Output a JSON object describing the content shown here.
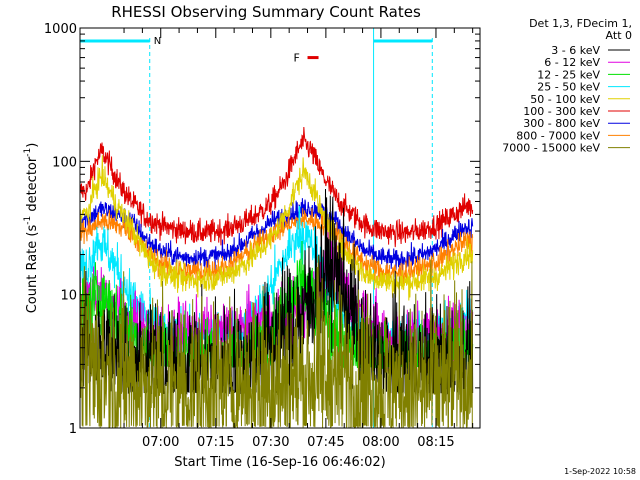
{
  "chart_data": {
    "type": "line",
    "title": "RHESSI Observing Summary Count Rates",
    "xlabel": "Start Time (16-Sep-16 06:46:02)",
    "ylabel": "Count Rate (s",
    "ylabel_sup1": "-1",
    "ylabel_mid": " detector",
    "ylabel_sup2": "-1",
    "ylabel_end": ")",
    "yscale": "log",
    "ylim": [
      1,
      1000
    ],
    "xlim_minutes": [
      -8,
      101
    ],
    "x_tick_labels": [
      {
        "minute": 14,
        "label": "07:00"
      },
      {
        "minute": 29,
        "label": "07:15"
      },
      {
        "minute": 44,
        "label": "07:30"
      },
      {
        "minute": 59,
        "label": "07:45"
      },
      {
        "minute": 74,
        "label": "08:00"
      },
      {
        "minute": 89,
        "label": "08:15"
      }
    ],
    "y_tick_labels": [
      {
        "value": 1,
        "label": "1"
      },
      {
        "value": 10,
        "label": "10"
      },
      {
        "value": 100,
        "label": "100"
      },
      {
        "value": 1000,
        "label": "1000"
      }
    ],
    "legend": {
      "header1": "Det 1,3, FDecim 1,",
      "header2": "Att 0",
      "entries": [
        {
          "label": "3 - 6 keV",
          "color": "#000000"
        },
        {
          "label": "6 - 12 keV",
          "color": "#e000e0"
        },
        {
          "label": "12 - 25 keV",
          "color": "#00e000"
        },
        {
          "label": "25 - 50 keV",
          "color": "#00e8ff"
        },
        {
          "label": "50 - 100 keV",
          "color": "#e0d000"
        },
        {
          "label": "100 - 300 keV",
          "color": "#e00000"
        },
        {
          "label": "300 - 800 keV",
          "color": "#0000e0"
        },
        {
          "label": "800 - 7000 keV",
          "color": "#ff8000"
        },
        {
          "label": "7000 - 15000 keV",
          "color": "#808000"
        }
      ]
    },
    "night_intervals": [
      {
        "start": -8,
        "end": 11,
        "label": "N"
      },
      {
        "start": 72,
        "end": 88,
        "label": ""
      }
    ],
    "flare_marker": {
      "label": "F",
      "start": 54,
      "end": 57,
      "y": 600
    },
    "series": [
      {
        "name": "100 - 300 keV",
        "color": "#e00000",
        "noise": 0.045,
        "points": [
          [
            -6,
            60
          ],
          [
            -4,
            95
          ],
          [
            -2,
            120
          ],
          [
            0,
            95
          ],
          [
            3,
            65
          ],
          [
            6,
            50
          ],
          [
            10,
            38
          ],
          [
            14,
            33
          ],
          [
            20,
            30
          ],
          [
            26,
            29
          ],
          [
            32,
            31
          ],
          [
            38,
            36
          ],
          [
            44,
            48
          ],
          [
            48,
            72
          ],
          [
            50,
            100
          ],
          [
            52,
            130
          ],
          [
            53,
            140
          ],
          [
            55,
            120
          ],
          [
            58,
            80
          ],
          [
            62,
            52
          ],
          [
            66,
            40
          ],
          [
            70,
            33
          ],
          [
            74,
            30
          ],
          [
            78,
            29
          ],
          [
            82,
            29
          ],
          [
            86,
            31
          ],
          [
            90,
            34
          ],
          [
            94,
            40
          ],
          [
            97,
            46
          ]
        ]
      },
      {
        "name": "300 - 800 keV",
        "color": "#0000e0",
        "noise": 0.04,
        "points": [
          [
            -6,
            37
          ],
          [
            -2,
            44
          ],
          [
            2,
            40
          ],
          [
            6,
            36
          ],
          [
            10,
            26
          ],
          [
            14,
            21
          ],
          [
            20,
            19
          ],
          [
            26,
            19
          ],
          [
            32,
            20
          ],
          [
            38,
            26
          ],
          [
            44,
            35
          ],
          [
            50,
            41
          ],
          [
            54,
            45
          ],
          [
            58,
            42
          ],
          [
            62,
            35
          ],
          [
            66,
            26
          ],
          [
            70,
            21
          ],
          [
            74,
            19
          ],
          [
            78,
            18
          ],
          [
            82,
            19
          ],
          [
            86,
            20
          ],
          [
            90,
            23
          ],
          [
            94,
            28
          ],
          [
            97,
            32
          ]
        ]
      },
      {
        "name": "800 - 7000 keV",
        "color": "#ff8000",
        "noise": 0.045,
        "points": [
          [
            -6,
            30
          ],
          [
            -2,
            36
          ],
          [
            2,
            33
          ],
          [
            6,
            30
          ],
          [
            10,
            21
          ],
          [
            14,
            17
          ],
          [
            20,
            15
          ],
          [
            26,
            15
          ],
          [
            32,
            16
          ],
          [
            38,
            21
          ],
          [
            44,
            29
          ],
          [
            50,
            34
          ],
          [
            54,
            37
          ],
          [
            58,
            34
          ],
          [
            62,
            29
          ],
          [
            66,
            21
          ],
          [
            70,
            17
          ],
          [
            74,
            15
          ],
          [
            78,
            14.5
          ],
          [
            82,
            15
          ],
          [
            86,
            16
          ],
          [
            90,
            18
          ],
          [
            94,
            22
          ],
          [
            97,
            25
          ]
        ]
      },
      {
        "name": "50 - 100 keV",
        "color": "#e0d000",
        "noise": 0.05,
        "points": [
          [
            -6,
            40
          ],
          [
            -4,
            62
          ],
          [
            -2,
            80
          ],
          [
            0,
            60
          ],
          [
            3,
            42
          ],
          [
            6,
            32
          ],
          [
            10,
            20
          ],
          [
            14,
            15
          ],
          [
            20,
            13
          ],
          [
            26,
            13
          ],
          [
            32,
            14
          ],
          [
            38,
            18
          ],
          [
            44,
            26
          ],
          [
            48,
            40
          ],
          [
            50,
            55
          ],
          [
            53,
            85
          ],
          [
            55,
            68
          ],
          [
            58,
            40
          ],
          [
            62,
            25
          ],
          [
            66,
            18
          ],
          [
            70,
            14
          ],
          [
            74,
            13
          ],
          [
            78,
            12
          ],
          [
            82,
            12.5
          ],
          [
            86,
            13
          ],
          [
            90,
            14
          ],
          [
            94,
            17
          ],
          [
            97,
            20
          ]
        ]
      },
      {
        "name": "25 - 50 keV",
        "color": "#00e8ff",
        "noise": 0.09,
        "clip": 4.5,
        "points": [
          [
            -6,
            16
          ],
          [
            -3,
            26
          ],
          [
            0,
            20
          ],
          [
            4,
            12
          ],
          [
            8,
            8
          ],
          [
            12,
            6
          ],
          [
            16,
            5
          ],
          [
            22,
            4.6
          ],
          [
            28,
            4.6
          ],
          [
            34,
            5
          ],
          [
            40,
            7
          ],
          [
            45,
            13
          ],
          [
            49,
            22
          ],
          [
            52,
            30
          ],
          [
            55,
            24
          ],
          [
            58,
            15
          ],
          [
            62,
            9
          ],
          [
            66,
            6.5
          ],
          [
            70,
            5
          ],
          [
            74,
            4.6
          ],
          [
            80,
            4.5
          ],
          [
            86,
            4.6
          ],
          [
            92,
            5.5
          ],
          [
            97,
            7
          ]
        ]
      },
      {
        "name": "6 - 12 keV",
        "color": "#e000e0",
        "noise": 0.12,
        "points": [
          [
            -6,
            9
          ],
          [
            -2,
            11
          ],
          [
            2,
            8
          ],
          [
            6,
            6
          ],
          [
            12,
            5
          ],
          [
            18,
            5
          ],
          [
            24,
            5
          ],
          [
            30,
            5.2
          ],
          [
            36,
            5.5
          ],
          [
            42,
            6
          ],
          [
            48,
            7
          ],
          [
            53,
            8
          ],
          [
            57,
            11
          ],
          [
            60,
            16
          ],
          [
            63,
            13
          ],
          [
            66,
            9
          ],
          [
            70,
            7
          ],
          [
            74,
            5
          ],
          [
            80,
            4.5
          ],
          [
            86,
            5
          ],
          [
            92,
            5
          ],
          [
            97,
            5.5
          ]
        ]
      },
      {
        "name": "12 - 25 keV",
        "color": "#00e000",
        "noise": 0.14,
        "clip": 2.8,
        "points": [
          [
            -6,
            8
          ],
          [
            -2,
            10
          ],
          [
            2,
            7
          ],
          [
            6,
            5
          ],
          [
            10,
            4
          ],
          [
            16,
            3.5
          ],
          [
            22,
            3.3
          ],
          [
            28,
            3.3
          ],
          [
            34,
            3.4
          ],
          [
            40,
            4
          ],
          [
            46,
            6
          ],
          [
            50,
            9
          ],
          [
            53,
            12
          ],
          [
            56,
            9
          ],
          [
            60,
            6
          ],
          [
            64,
            4.2
          ],
          [
            68,
            3.6
          ],
          [
            74,
            3.3
          ],
          [
            80,
            3.2
          ],
          [
            86,
            3.3
          ],
          [
            92,
            3.5
          ],
          [
            97,
            3.8
          ]
        ]
      },
      {
        "name": "3 - 6 keV",
        "color": "#000000",
        "noise": 0.25,
        "clip": 1.8,
        "points": [
          [
            -6,
            4
          ],
          [
            0,
            3.5
          ],
          [
            8,
            3
          ],
          [
            16,
            2.8
          ],
          [
            24,
            2.8
          ],
          [
            30,
            3
          ],
          [
            36,
            3.2
          ],
          [
            42,
            3.8
          ],
          [
            48,
            5
          ],
          [
            54,
            8
          ],
          [
            58,
            14
          ],
          [
            60,
            18
          ],
          [
            63,
            12
          ],
          [
            66,
            7
          ],
          [
            70,
            4
          ],
          [
            74,
            3
          ],
          [
            80,
            2.8
          ],
          [
            86,
            2.9
          ],
          [
            92,
            3.0
          ],
          [
            97,
            3.2
          ]
        ]
      },
      {
        "name": "7000 - 15000 keV",
        "color": "#808000",
        "noise": 0.35,
        "clip": 1.0,
        "points": [
          [
            -6,
            3
          ],
          [
            0,
            2.6
          ],
          [
            8,
            2.2
          ],
          [
            16,
            2
          ],
          [
            24,
            2
          ],
          [
            32,
            2
          ],
          [
            40,
            2.1
          ],
          [
            48,
            2.3
          ],
          [
            56,
            2.5
          ],
          [
            62,
            2.4
          ],
          [
            70,
            2.1
          ],
          [
            78,
            2
          ],
          [
            86,
            2
          ],
          [
            92,
            2.1
          ],
          [
            97,
            2.3
          ]
        ]
      }
    ]
  },
  "timestamp": "1-Sep-2022 10:58"
}
